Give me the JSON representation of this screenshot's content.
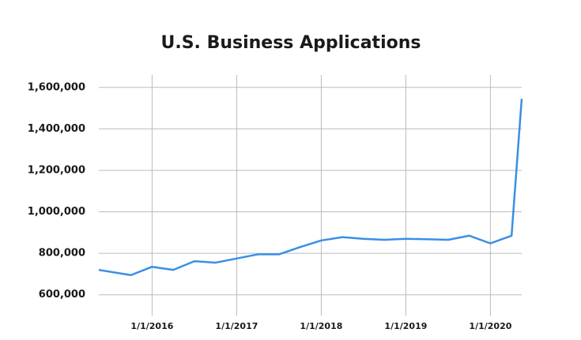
{
  "chart_data": {
    "type": "line",
    "title": "U.S. Business Applications",
    "x": [
      2015.37,
      2015.75,
      2016,
      2016.25,
      2016.5,
      2016.75,
      2017,
      2017.25,
      2017.5,
      2017.75,
      2018,
      2018.25,
      2018.5,
      2018.75,
      2019,
      2019.25,
      2019.5,
      2019.75,
      2020,
      2020.25,
      2020.37
    ],
    "series": [
      {
        "name": "Business Applications",
        "color": "#3a8ee6",
        "values": [
          720000,
          695000,
          735000,
          720000,
          762000,
          755000,
          775000,
          795000,
          795000,
          830000,
          862000,
          878000,
          870000,
          865000,
          870000,
          868000,
          865000,
          885000,
          848000,
          885000,
          1545000
        ]
      }
    ],
    "xlim": [
      2015.37,
      2020.37
    ],
    "xticks": [
      {
        "value": 2016,
        "label": "1/1/2016"
      },
      {
        "value": 2017,
        "label": "1/1/2017"
      },
      {
        "value": 2018,
        "label": "1/1/2018"
      },
      {
        "value": 2019,
        "label": "1/1/2019"
      },
      {
        "value": 2020,
        "label": "1/1/2020"
      }
    ],
    "ylim": [
      500000,
      1660000
    ],
    "yticks": [
      {
        "value": 600000,
        "label": "600,000"
      },
      {
        "value": 800000,
        "label": "800,000"
      },
      {
        "value": 1000000,
        "label": "1,000,000"
      },
      {
        "value": 1200000,
        "label": "1,200,000"
      },
      {
        "value": 1400000,
        "label": "1,400,000"
      },
      {
        "value": 1600000,
        "label": "1,600,000"
      }
    ],
    "grid": true
  }
}
